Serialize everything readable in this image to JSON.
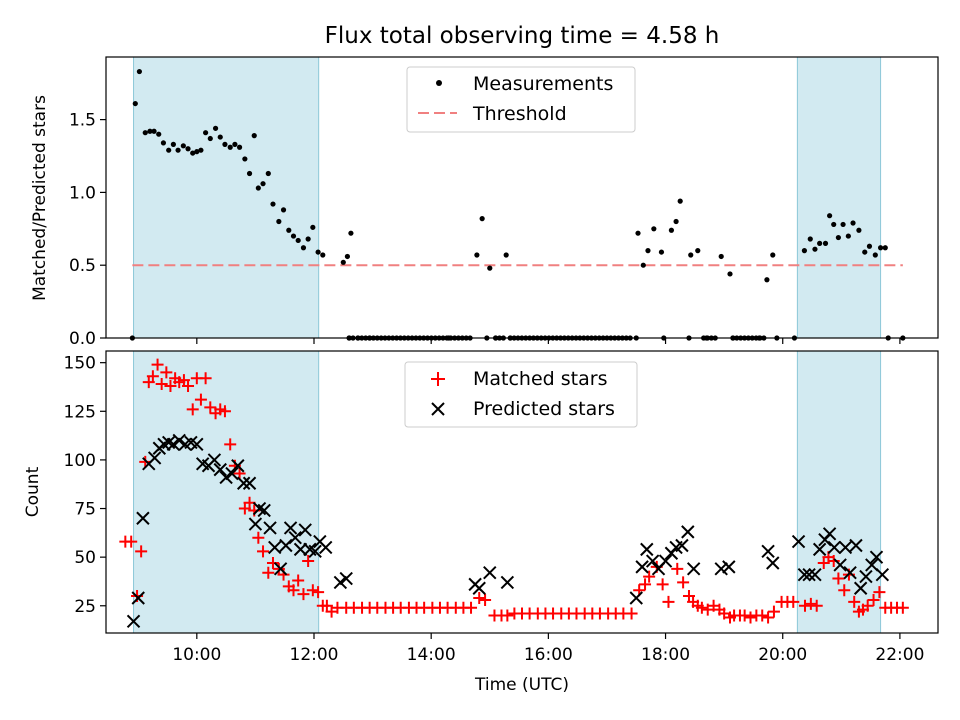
{
  "chart_data": [
    {
      "type": "scatter",
      "title": "Flux total observing time = 4.58 h",
      "xlabel": "",
      "ylabel": "Matched/Predicted stars",
      "xlim": [
        8.45,
        22.65
      ],
      "ylim": [
        0,
        1.93
      ],
      "yticks": [
        0,
        0.5,
        1.0,
        1.5
      ],
      "ytick_labels": [
        "0.0",
        "0.5",
        "1.0",
        "1.5"
      ],
      "legend": [
        "Measurements",
        "Threshold"
      ],
      "legend_position": "upper center",
      "threshold": {
        "name": "Threshold",
        "value": 0.5,
        "x": [
          8.9,
          22.05
        ],
        "color": "#f08080"
      },
      "shaded_intervals": [
        [
          8.92,
          12.08
        ],
        [
          20.25,
          21.67
        ]
      ],
      "shade_color": "#add8e6",
      "series": [
        {
          "name": "Measurements",
          "color": "#000000",
          "x": [
            8.95,
            9.02,
            9.12,
            9.2,
            9.27,
            9.35,
            9.43,
            9.52,
            9.6,
            9.68,
            9.77,
            9.85,
            9.93,
            10.0,
            10.07,
            10.15,
            10.23,
            10.32,
            10.4,
            10.48,
            10.57,
            10.65,
            10.73,
            10.82,
            10.9,
            10.98,
            11.05,
            11.13,
            11.22,
            11.3,
            11.4,
            11.48,
            11.57,
            11.65,
            11.73,
            11.82,
            11.9,
            11.98,
            12.07,
            12.15,
            12.5,
            12.57,
            12.63,
            14.78,
            14.87,
            15.0,
            15.28,
            17.53,
            17.62,
            17.7,
            17.8,
            17.93,
            18.1,
            18.18,
            18.25,
            18.43,
            18.55,
            18.95,
            19.1,
            19.73,
            19.83,
            20.37,
            20.47,
            20.55,
            20.63,
            20.73,
            20.8,
            20.87,
            20.95,
            21.03,
            21.12,
            21.2,
            21.3,
            21.4,
            21.48,
            21.58,
            21.67,
            21.75
          ],
          "y": [
            1.61,
            1.83,
            1.41,
            1.42,
            1.42,
            1.4,
            1.34,
            1.29,
            1.33,
            1.29,
            1.32,
            1.3,
            1.27,
            1.28,
            1.29,
            1.41,
            1.37,
            1.44,
            1.38,
            1.33,
            1.31,
            1.33,
            1.31,
            1.23,
            1.13,
            1.39,
            1.03,
            1.06,
            1.13,
            0.92,
            0.8,
            0.88,
            0.74,
            0.7,
            0.67,
            0.62,
            0.68,
            0.76,
            0.59,
            0.57,
            0.52,
            0.56,
            0.72,
            0.57,
            0.82,
            0.48,
            0.57,
            0.72,
            0.5,
            0.6,
            0.75,
            0.59,
            0.74,
            0.8,
            0.94,
            0.57,
            0.6,
            0.56,
            0.44,
            0.4,
            0.57,
            0.6,
            0.68,
            0.61,
            0.65,
            0.65,
            0.84,
            0.78,
            0.69,
            0.78,
            0.7,
            0.79,
            0.74,
            0.59,
            0.63,
            0.57,
            0.62,
            0.62
          ]
        },
        {
          "name": "Measurements (zero)",
          "color": "#000000",
          "x": [
            8.9,
            12.6,
            12.75,
            12.95,
            14.3,
            14.95,
            15.1,
            15.35,
            17.5,
            17.97,
            18.4,
            18.7,
            19.15,
            19.6,
            19.9,
            20.2,
            21.8,
            22.05
          ],
          "y": [
            0,
            0,
            0,
            0,
            0,
            0,
            0,
            0,
            0,
            0,
            0,
            0,
            0,
            0,
            0,
            0,
            0,
            0
          ]
        }
      ]
    },
    {
      "type": "scatter",
      "title": "",
      "xlabel": "Time (UTC)",
      "ylabel": "Count",
      "xlim": [
        8.45,
        22.65
      ],
      "ylim": [
        11,
        156
      ],
      "yticks": [
        25,
        50,
        75,
        100,
        125,
        150
      ],
      "xticks": [
        10,
        12,
        14,
        16,
        18,
        20,
        22
      ],
      "xtick_labels": [
        "10:00",
        "12:00",
        "14:00",
        "16:00",
        "18:00",
        "20:00",
        "22:00"
      ],
      "legend": [
        "Matched stars",
        "Predicted stars"
      ],
      "legend_position": "upper center",
      "shaded_intervals": [
        [
          8.92,
          12.08
        ],
        [
          20.25,
          21.67
        ]
      ],
      "shade_color": "#add8e6",
      "series": [
        {
          "name": "Matched stars",
          "marker": "plus",
          "color": "#ff0000",
          "x": [
            8.78,
            8.88,
            8.98,
            9.05,
            9.12,
            9.18,
            9.25,
            9.33,
            9.4,
            9.48,
            9.55,
            9.63,
            9.7,
            9.78,
            9.85,
            9.93,
            10.0,
            10.07,
            10.15,
            10.23,
            10.32,
            10.4,
            10.48,
            10.57,
            10.65,
            10.73,
            10.82,
            10.9,
            10.98,
            11.05,
            11.13,
            11.22,
            11.3,
            11.4,
            11.48,
            11.57,
            11.65,
            11.73,
            11.82,
            11.9,
            11.98,
            12.07,
            12.15,
            12.22,
            12.3,
            12.4,
            14.82,
            14.92,
            15.3,
            17.55,
            17.65,
            17.72,
            17.85,
            17.95,
            18.05,
            18.2,
            18.3,
            18.4,
            18.47,
            18.55,
            18.62,
            18.72,
            18.82,
            18.92,
            19.0,
            19.1,
            19.17,
            19.27,
            19.35,
            19.45,
            19.55,
            19.65,
            19.75,
            19.85,
            20.38,
            20.48,
            20.58,
            20.7,
            20.78,
            20.87,
            20.95,
            21.05,
            21.13,
            21.22,
            21.3,
            21.37,
            21.45,
            21.55,
            21.65,
            21.75,
            21.85,
            21.95,
            22.05
          ],
          "y": [
            58,
            58,
            30,
            53,
            99,
            140,
            143,
            149,
            139,
            145,
            138,
            142,
            140,
            141,
            138,
            126,
            142,
            131,
            142,
            127,
            124,
            126,
            125,
            108,
            97,
            93,
            75,
            78,
            74,
            60,
            53,
            42,
            47,
            44,
            41,
            35,
            33,
            38,
            31,
            48,
            33,
            32,
            25,
            25,
            22,
            24,
            29,
            28,
            20,
            33,
            36,
            40,
            45,
            36,
            27,
            44,
            37,
            30,
            27,
            25,
            24,
            23,
            25,
            23,
            21,
            19,
            20,
            20,
            20,
            19,
            20,
            20,
            19,
            22,
            25,
            26,
            25,
            47,
            50,
            48,
            39,
            33,
            41,
            27,
            22,
            23,
            25,
            28,
            32,
            24,
            24,
            24,
            24
          ]
        },
        {
          "name": "Matched stars (baseline)",
          "marker": "plus",
          "color": "#ff0000",
          "x": [
            12.55,
            12.68,
            12.82,
            12.95,
            13.08,
            13.22,
            13.35,
            13.48,
            13.62,
            13.75,
            13.88,
            14.02,
            14.15,
            14.28,
            14.42,
            14.55,
            14.68,
            15.08,
            15.2,
            15.42,
            15.55,
            15.68,
            15.82,
            15.95,
            16.08,
            16.22,
            16.35,
            16.48,
            16.62,
            16.75,
            16.88,
            17.02,
            17.15,
            17.28,
            17.42,
            19.98,
            20.08,
            20.18
          ],
          "y": [
            24,
            24,
            24,
            24,
            24,
            24,
            24,
            24,
            24,
            24,
            24,
            24,
            24,
            24,
            24,
            24,
            24,
            20,
            20,
            21,
            21,
            21,
            21,
            21,
            21,
            21,
            21,
            21,
            21,
            21,
            21,
            21,
            21,
            21,
            21,
            27,
            27,
            27
          ]
        },
        {
          "name": "Predicted stars",
          "marker": "x",
          "color": "#000000",
          "x": [
            8.92,
            9.0,
            9.08,
            9.18,
            9.28,
            9.36,
            9.44,
            9.52,
            9.6,
            9.7,
            9.8,
            9.9,
            10.0,
            10.1,
            10.2,
            10.3,
            10.4,
            10.5,
            10.6,
            10.7,
            10.8,
            10.9,
            11.0,
            11.07,
            11.15,
            11.25,
            11.33,
            11.43,
            11.52,
            11.6,
            11.68,
            11.77,
            11.85,
            11.93,
            12.02,
            12.1,
            12.2,
            12.45,
            12.55,
            14.75,
            14.82,
            15.0,
            15.3,
            17.5,
            17.6,
            17.68,
            17.78,
            17.88,
            18.0,
            18.1,
            18.18,
            18.28,
            18.38,
            18.48,
            18.95,
            19.08,
            19.75,
            19.83,
            20.27,
            20.37,
            20.45,
            20.55,
            20.63,
            20.72,
            20.8,
            20.88,
            20.98,
            21.07,
            21.15,
            21.25,
            21.33,
            21.42,
            21.52,
            21.6,
            21.7
          ],
          "y": [
            17,
            29,
            70,
            98,
            101,
            106,
            108,
            109,
            108,
            110,
            108,
            109,
            108,
            98,
            97,
            100,
            95,
            91,
            93,
            97,
            88,
            88,
            67,
            75,
            74,
            65,
            55,
            44,
            56,
            65,
            60,
            54,
            64,
            54,
            53,
            58,
            55,
            37,
            39,
            36,
            34,
            42,
            37,
            29,
            45,
            54,
            48,
            44,
            48,
            52,
            55,
            56,
            63,
            44,
            44,
            45,
            53,
            47,
            58,
            41,
            41,
            41,
            54,
            59,
            62,
            55,
            46,
            55,
            42,
            56,
            34,
            40,
            46,
            50,
            41
          ]
        }
      ]
    }
  ]
}
